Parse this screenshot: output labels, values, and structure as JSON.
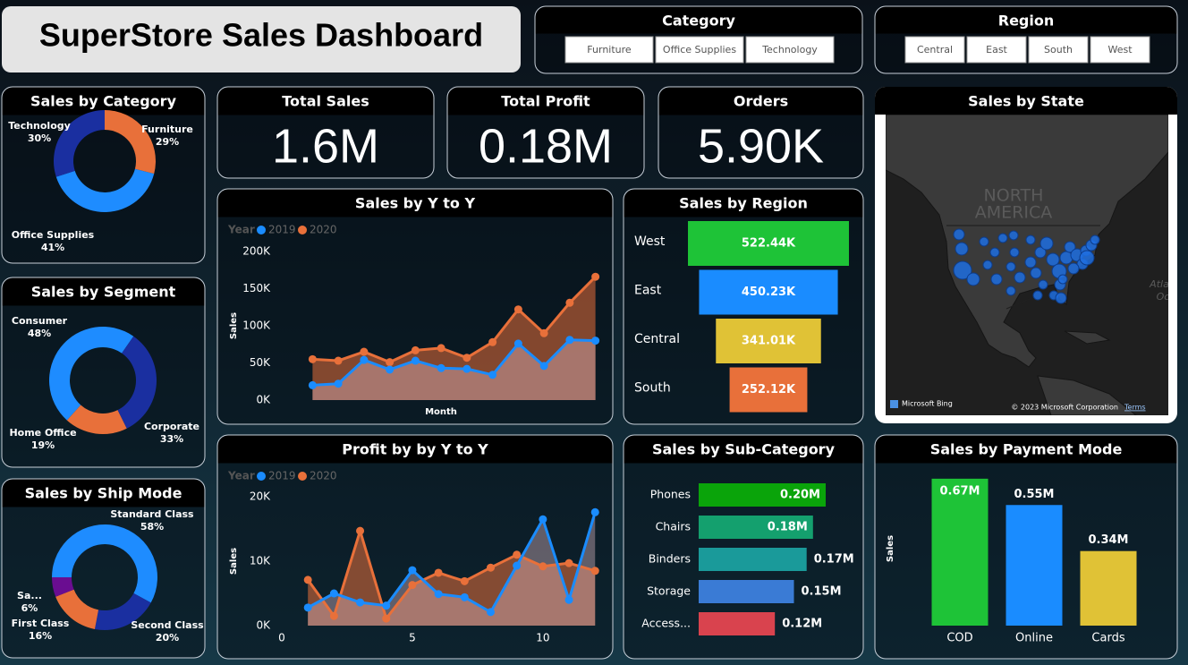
{
  "header": {
    "title": "SuperStore Sales Dashboard"
  },
  "slicers": [
    {
      "title": "Category",
      "options": [
        "Furniture",
        "Office Supplies",
        "Technology"
      ]
    },
    {
      "title": "Region",
      "options": [
        "Central",
        "East",
        "South",
        "West"
      ]
    }
  ],
  "kpis": [
    {
      "title": "Total Sales",
      "value": "1.6M"
    },
    {
      "title": "Total Profit",
      "value": "0.18M"
    },
    {
      "title": "Orders",
      "value": "5.90K"
    }
  ],
  "map": {
    "title": "Sales by State",
    "labels": [
      "NORTH",
      "AMERICA",
      "Atla",
      "Oc"
    ],
    "attribution": [
      "Microsoft Bing",
      "© 2023 Microsoft Corporation",
      "Terms"
    ]
  },
  "chart_data": [
    {
      "type": "donut",
      "title": "Sales by Category",
      "categories": [
        "Furniture",
        "Office Supplies",
        "Technology"
      ],
      "values": [
        29,
        41,
        30
      ],
      "value_labels": [
        "29%",
        "41%",
        "30%"
      ],
      "colors": [
        "#e8703a",
        "#1e8cff",
        "#1a2fa0"
      ]
    },
    {
      "type": "donut",
      "title": "Sales by Segment",
      "categories": [
        "Consumer",
        "Corporate",
        "Home Office"
      ],
      "values": [
        48,
        33,
        19
      ],
      "value_labels": [
        "48%",
        "33%",
        "19%"
      ],
      "colors": [
        "#1e8cff",
        "#1a2fa0",
        "#e8703a"
      ]
    },
    {
      "type": "donut",
      "title": "Sales by Ship Mode",
      "categories": [
        "Standard Class",
        "Second Class",
        "First Class",
        "Sa..."
      ],
      "values": [
        58,
        20,
        16,
        6
      ],
      "value_labels": [
        "58%",
        "20%",
        "16%",
        "6%"
      ],
      "colors": [
        "#1e8cff",
        "#1a2fa0",
        "#e8703a",
        "#6a0d91"
      ]
    },
    {
      "type": "area",
      "title": "Sales by Y to Y",
      "legend_title": "Year",
      "x_label": "Month",
      "y_label": "Sales",
      "categories": [
        null,
        null,
        null,
        null,
        null,
        null,
        null,
        null,
        null,
        null,
        null,
        null
      ],
      "series": [
        {
          "name": "2019",
          "color": "#1a8cff",
          "values": [
            20000,
            22000,
            54000,
            41000,
            53000,
            43000,
            42000,
            34000,
            76000,
            46000,
            81000,
            80000
          ]
        },
        {
          "name": "2020",
          "color": "#e8703a",
          "values": [
            55000,
            53000,
            65000,
            51000,
            67000,
            70000,
            57000,
            78000,
            122000,
            90000,
            131000,
            166000
          ]
        }
      ],
      "ylim": [
        0,
        200000
      ],
      "yticks": [
        {
          "value": 0,
          "label": "0K"
        },
        {
          "value": 50000,
          "label": "50K"
        },
        {
          "value": 100000,
          "label": "100K"
        },
        {
          "value": 150000,
          "label": "150K"
        },
        {
          "value": 200000,
          "label": "200K"
        }
      ]
    },
    {
      "type": "area",
      "title": "Profit by by Y to Y",
      "legend_title": "Year",
      "y_label": "Sales",
      "x": [
        1,
        2,
        3,
        4,
        5,
        6,
        7,
        8,
        9,
        10,
        11,
        12
      ],
      "xlim": [
        0,
        12.3
      ],
      "xticks": [
        0,
        5,
        10
      ],
      "series": [
        {
          "name": "2019",
          "color": "#1a8cff",
          "values": [
            2800,
            5000,
            3600,
            3100,
            8600,
            4900,
            4400,
            2100,
            9300,
            16500,
            4000,
            17600
          ]
        },
        {
          "name": "2020",
          "color": "#e8703a",
          "values": [
            7100,
            1500,
            14700,
            1100,
            6300,
            8200,
            6900,
            9000,
            11000,
            9200,
            9700,
            8500
          ]
        }
      ],
      "ylim": [
        0,
        20000
      ],
      "yticks": [
        {
          "value": 0,
          "label": "0K"
        },
        {
          "value": 10000,
          "label": "10K"
        },
        {
          "value": 20000,
          "label": "20K"
        }
      ]
    },
    {
      "type": "funnel",
      "title": "Sales by Region",
      "categories": [
        "West",
        "East",
        "Central",
        "South"
      ],
      "values": [
        522.44,
        450.23,
        341.01,
        252.12
      ],
      "value_labels": [
        "522.44K",
        "450.23K",
        "341.01K",
        "252.12K"
      ],
      "colors": [
        "#1ec337",
        "#1a8cff",
        "#e0c236",
        "#e8703a"
      ]
    },
    {
      "type": "bar",
      "horizontal": true,
      "title": "Sales by Sub-Category",
      "categories": [
        "Phones",
        "Chairs",
        "Binders",
        "Storage",
        "Access..."
      ],
      "values": [
        0.2,
        0.18,
        0.17,
        0.15,
        0.12
      ],
      "value_labels": [
        "0.20M",
        "0.18M",
        "0.17M",
        "0.15M",
        "0.12M"
      ],
      "colors": [
        "#0aa40a",
        "#14a06e",
        "#1a9a9a",
        "#3a7bd5",
        "#d9434e"
      ]
    },
    {
      "type": "bar",
      "horizontal": false,
      "title": "Sales by Payment Mode",
      "y_label": "Sales",
      "categories": [
        "COD",
        "Online",
        "Cards"
      ],
      "values": [
        0.67,
        0.55,
        0.34
      ],
      "value_labels": [
        "0.67M",
        "0.55M",
        "0.34M"
      ],
      "colors": [
        "#1ec337",
        "#1a8cff",
        "#e0c236"
      ]
    }
  ]
}
